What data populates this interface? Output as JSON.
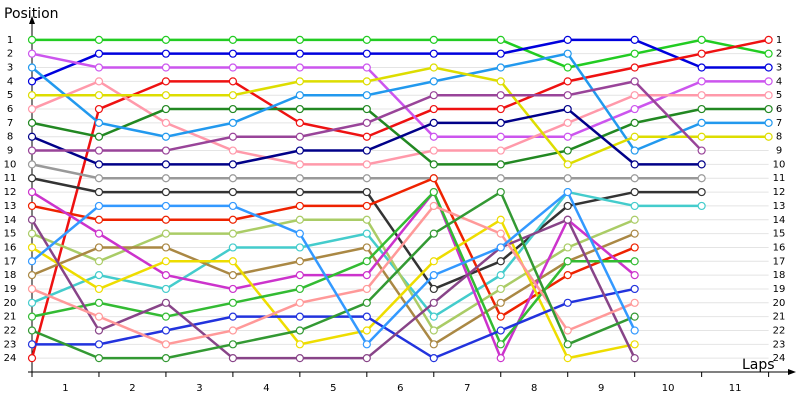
{
  "chart_data": {
    "type": "line",
    "ylabel": "Position",
    "xlabel": "Laps",
    "x": [
      0,
      1,
      2,
      3,
      4,
      5,
      6,
      7,
      8,
      9,
      10,
      11
    ],
    "xlim": [
      0,
      11.2
    ],
    "xticks": [
      {
        "value": 0.5,
        "label": "1"
      },
      {
        "value": 1.5,
        "label": "2"
      },
      {
        "value": 2.5,
        "label": "3"
      },
      {
        "value": 3.5,
        "label": "4"
      },
      {
        "value": 4.5,
        "label": "5"
      },
      {
        "value": 5.5,
        "label": "6"
      },
      {
        "value": 6.5,
        "label": "7"
      },
      {
        "value": 7.5,
        "label": "8"
      },
      {
        "value": 8.5,
        "label": "9"
      },
      {
        "value": 9.5,
        "label": "10"
      },
      {
        "value": 10.5,
        "label": "11"
      }
    ],
    "ylim": [
      25,
      0
    ],
    "yticks": [
      1,
      2,
      3,
      4,
      5,
      6,
      7,
      8,
      9,
      10,
      11,
      12,
      13,
      14,
      15,
      16,
      17,
      18,
      19,
      20,
      21,
      22,
      23,
      24
    ],
    "grid": true,
    "series": [
      {
        "color": "#22cc22",
        "values": [
          1,
          1,
          1,
          1,
          1,
          1,
          1,
          1,
          3,
          2,
          1,
          2
        ]
      },
      {
        "color": "#0000dd",
        "values": [
          4,
          2,
          2,
          2,
          2,
          2,
          2,
          2,
          1,
          1,
          3,
          3
        ]
      },
      {
        "color": "#ee1111",
        "values": [
          24,
          6,
          4,
          4,
          7,
          8,
          6,
          6,
          4,
          3,
          2,
          1
        ]
      },
      {
        "color": "#cc55ee",
        "values": [
          2,
          3,
          3,
          3,
          3,
          3,
          8,
          8,
          8,
          6,
          4,
          4
        ]
      },
      {
        "color": "#ff99aa",
        "values": [
          6,
          4,
          7,
          9,
          10,
          10,
          9,
          9,
          7,
          5,
          5,
          5
        ]
      },
      {
        "color": "#228822",
        "values": [
          7,
          8,
          6,
          6,
          6,
          6,
          10,
          10,
          9,
          7,
          6,
          6
        ]
      },
      {
        "color": "#2299ee",
        "values": [
          3,
          7,
          8,
          7,
          5,
          5,
          4,
          3,
          2,
          9,
          7,
          7
        ]
      },
      {
        "color": "#dddd00",
        "values": [
          5,
          5,
          5,
          5,
          4,
          4,
          3,
          4,
          10,
          8,
          8,
          8
        ]
      },
      {
        "color": "#000088",
        "values": [
          8,
          10,
          10,
          10,
          9,
          9,
          7,
          7,
          6,
          10,
          10,
          null
        ]
      },
      {
        "color": "#994499",
        "values": [
          9,
          9,
          9,
          8,
          8,
          7,
          5,
          5,
          5,
          4,
          9,
          null
        ]
      },
      {
        "color": "#999999",
        "values": [
          10,
          11,
          11,
          11,
          11,
          11,
          11,
          11,
          11,
          11,
          11,
          null
        ]
      },
      {
        "color": "#333333",
        "values": [
          11,
          12,
          12,
          12,
          12,
          12,
          19,
          17,
          13,
          12,
          12,
          null
        ]
      },
      {
        "color": "#44cccc",
        "values": [
          20,
          18,
          19,
          16,
          16,
          15,
          21,
          18,
          12,
          13,
          13,
          null
        ]
      },
      {
        "color": "#ee2200",
        "values": [
          13,
          14,
          14,
          14,
          13,
          13,
          11,
          21,
          18,
          16,
          null,
          null
        ]
      },
      {
        "color": "#aacc66",
        "values": [
          15,
          17,
          15,
          15,
          14,
          14,
          22,
          19,
          16,
          14,
          null,
          null
        ]
      },
      {
        "color": "#aa8844",
        "values": [
          18,
          16,
          16,
          18,
          17,
          16,
          23,
          20,
          17,
          15,
          null,
          null
        ]
      },
      {
        "color": "#cc33cc",
        "values": [
          12,
          15,
          18,
          19,
          18,
          18,
          12,
          24,
          14,
          18,
          null,
          null
        ]
      },
      {
        "color": "#eedd00",
        "values": [
          16,
          19,
          17,
          17,
          23,
          22,
          17,
          14,
          24,
          23,
          null,
          null
        ]
      },
      {
        "color": "#33bb33",
        "values": [
          21,
          20,
          21,
          20,
          19,
          17,
          12,
          23,
          17,
          17,
          null,
          null
        ]
      },
      {
        "color": "#2233dd",
        "values": [
          23,
          23,
          22,
          21,
          21,
          21,
          24,
          22,
          20,
          19,
          null,
          null
        ]
      },
      {
        "color": "#884488",
        "values": [
          14,
          22,
          20,
          24,
          24,
          24,
          20,
          16,
          14,
          24,
          null,
          null
        ]
      },
      {
        "color": "#ff9999",
        "values": [
          19,
          21,
          23,
          22,
          20,
          19,
          13,
          15,
          22,
          20,
          null,
          null
        ]
      },
      {
        "color": "#339933",
        "values": [
          22,
          24,
          24,
          23,
          22,
          20,
          15,
          12,
          23,
          21,
          null,
          null
        ]
      },
      {
        "color": "#3399ff",
        "values": [
          17,
          13,
          13,
          13,
          15,
          23,
          18,
          16,
          12,
          22,
          null,
          null
        ]
      }
    ]
  }
}
